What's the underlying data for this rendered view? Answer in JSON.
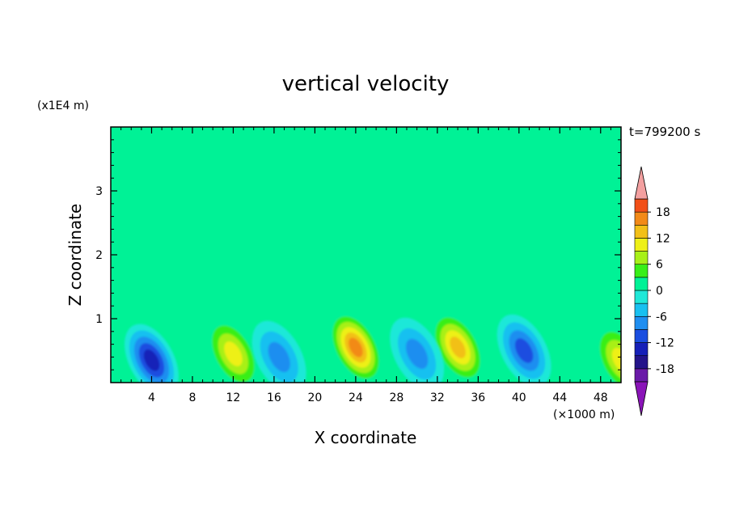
{
  "chart_data": {
    "type": "heatmap",
    "title": "vertical velocity",
    "xlabel": "X coordinate",
    "ylabel": "Z coordinate",
    "x_units": "(×1000 m)",
    "y_units": "(x1E4 m)",
    "time_label": "t=799200 s",
    "xlim": [
      0,
      50
    ],
    "ylim": [
      0,
      4
    ],
    "x_ticks": [
      4,
      8,
      12,
      16,
      20,
      24,
      28,
      32,
      36,
      40,
      44,
      48
    ],
    "y_ticks": [
      1,
      2,
      3
    ],
    "colorbar": {
      "range": [
        -21,
        21
      ],
      "tick_labels": [
        "18",
        "12",
        "6",
        "0",
        "-6",
        "-12",
        "-18"
      ],
      "tick_values": [
        18,
        12,
        6,
        0,
        -6,
        -12,
        -18
      ],
      "levels": [
        -21,
        -18,
        -15,
        -12,
        -9,
        -6,
        -3,
        0,
        3,
        6,
        9,
        12,
        15,
        18,
        21
      ],
      "colors": [
        "#6a1aa8",
        "#24148a",
        "#1620b8",
        "#1a4ee0",
        "#1f8ef0",
        "#18c0f0",
        "#1fe8d8",
        "#00f296",
        "#38ef18",
        "#a8f018",
        "#eef018",
        "#f2c018",
        "#f28a18",
        "#f25018",
        "#f01818"
      ],
      "over_color": "#f3a0a0",
      "under_color": "#8a14b8"
    },
    "background_value": 1,
    "features": [
      {
        "x": 24,
        "z": 0.55,
        "value": 15
      },
      {
        "x": 34,
        "z": 0.55,
        "value": 14
      },
      {
        "x": 12,
        "z": 0.45,
        "value": 9
      },
      {
        "x": 4,
        "z": 0.35,
        "value": -13
      },
      {
        "x": 16.5,
        "z": 0.4,
        "value": -7
      },
      {
        "x": 30,
        "z": 0.45,
        "value": -7
      },
      {
        "x": 40.5,
        "z": 0.5,
        "value": -9
      },
      {
        "x": 50,
        "z": 0.35,
        "value": 10
      }
    ]
  }
}
